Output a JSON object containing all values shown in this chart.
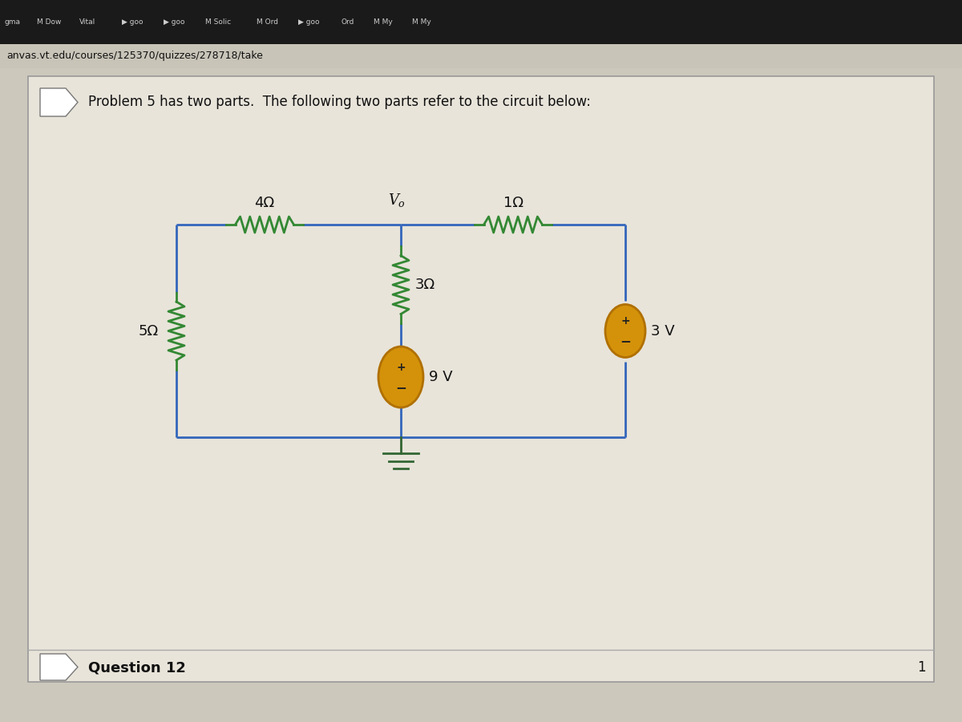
{
  "bg_top": "#1a1a1a",
  "bg_tab": "#c8c4b8",
  "bg_page": "#ccc8bc",
  "card_bg": "#e8e4da",
  "card_edge": "#999999",
  "wire_color": "#3366bb",
  "resistor_color": "#338833",
  "source_fill": "#d4920a",
  "source_edge": "#b07000",
  "ground_color": "#336633",
  "title_text": "Problem 5 has two parts.  The following two parts refer to the circuit below:",
  "url_text": "anvas.vt.edu/courses/125370/quizzes/278718/take",
  "question_text": "Question 12",
  "R1_label": "4Ω",
  "R2_label": "1Ω",
  "R3_label": "3Ω",
  "R4_label": "5Ω",
  "V1_label": "9 V",
  "V2_label": "3 V",
  "Vo_label": "V",
  "Vo_sub": "o",
  "plus_color": "#222222",
  "minus_color": "#222222"
}
